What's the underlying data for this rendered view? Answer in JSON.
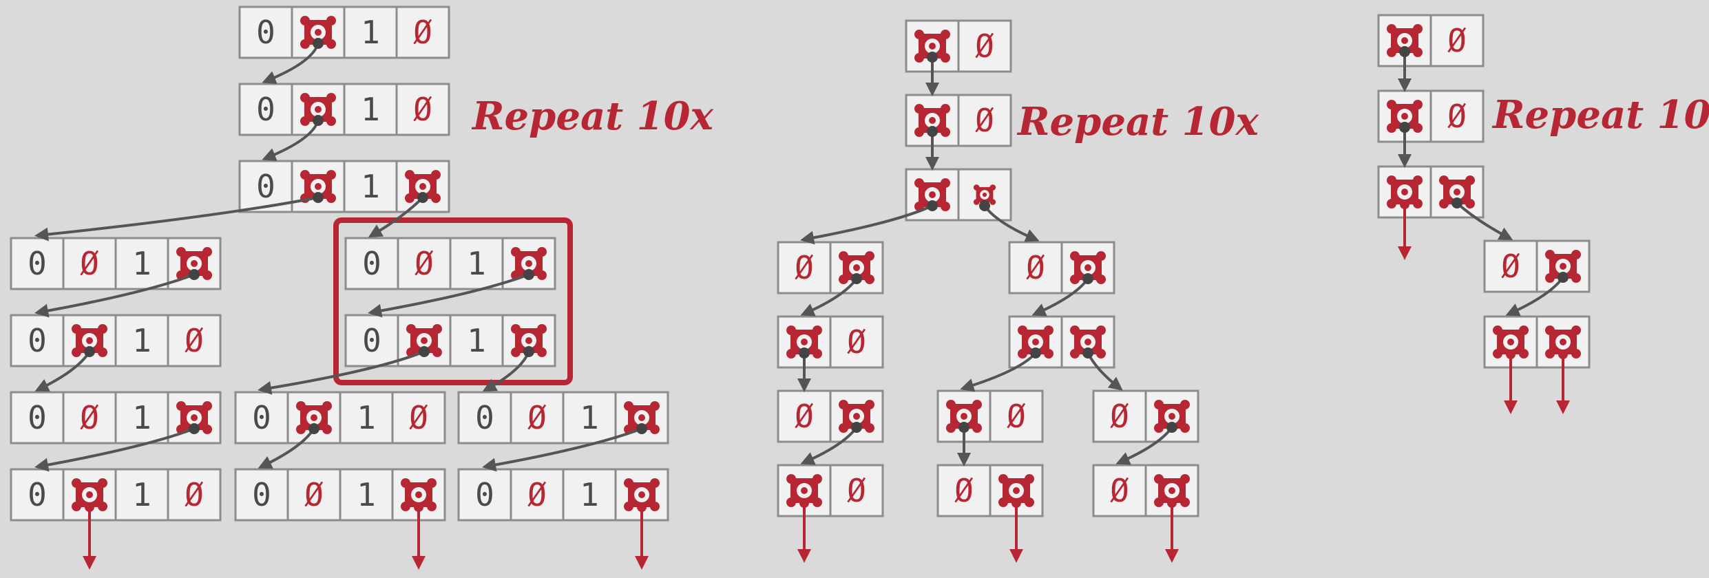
{
  "repeat_label": "Repeat 10x",
  "colors": {
    "background": "#dadada",
    "cell_fill": "#f1f1f1",
    "cell_border": "#8c8c8c",
    "digit": "#4a4a4a",
    "accent_red": "#b72733",
    "pointer_gray": "#555555"
  },
  "legend_symbols": {
    "null": "Ø",
    "pointer_icon": "gear-pointer-icon",
    "dangling_icon": "red-arrow-icon"
  },
  "diagrams": [
    {
      "name": "four-field-nodes",
      "node_fields": [
        "0",
        "ptr",
        "1",
        "ptr"
      ]
    },
    {
      "name": "two-field-nodes-a",
      "node_fields": [
        "ptr",
        "ptr"
      ]
    },
    {
      "name": "two-field-nodes-b",
      "node_fields": [
        "ptr",
        "ptr"
      ]
    }
  ]
}
